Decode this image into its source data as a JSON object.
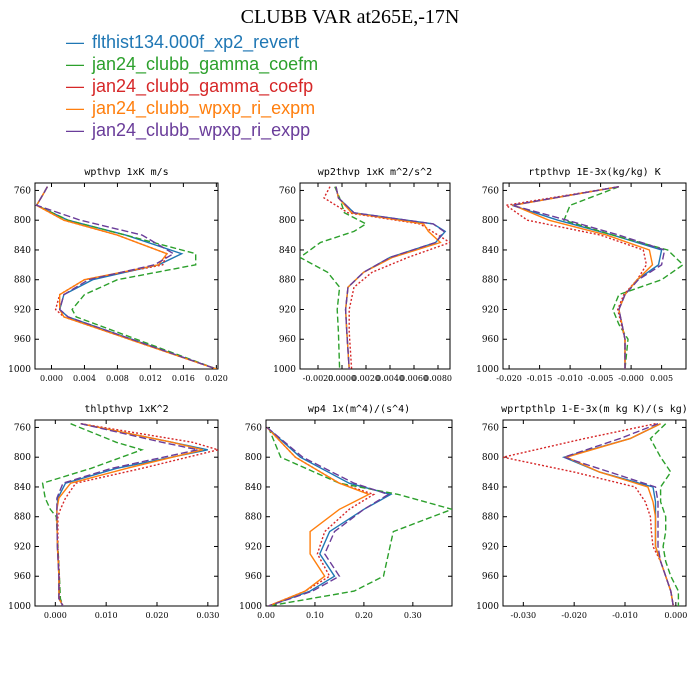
{
  "title": "CLUBB VAR at265E,-17N",
  "legend": [
    {
      "label": "flthist134.000f_xp2_revert",
      "color": "#1f77b4",
      "dash": ""
    },
    {
      "label": "jan24_clubb_gamma_coefm",
      "color": "#2ca02c",
      "dash": "6,3"
    },
    {
      "label": "jan24_clubb_gamma_coefp",
      "color": "#d62728",
      "dash": "2,2"
    },
    {
      "label": "jan24_clubb_wpxp_ri_expm",
      "color": "#ff7f0e",
      "dash": ""
    },
    {
      "label": "jan24_clubb_wpxp_ri_expp",
      "color": "#6a3d9a",
      "dash": "7,3"
    }
  ],
  "chart_data": [
    {
      "type": "line",
      "title": "wpthvp  1xK m/s",
      "ylim": [
        1000,
        750
      ],
      "yticks": [
        760,
        800,
        840,
        880,
        920,
        960,
        1000
      ],
      "xlim": [
        -0.002,
        0.0202
      ],
      "xticks": [
        0,
        0.004,
        0.008,
        0.012,
        0.016,
        0.02
      ],
      "xtick_labels": [
        "0.000",
        "0.004",
        "0.008",
        "0.012",
        "0.016",
        "0.020"
      ],
      "y": [
        755,
        765,
        780,
        800,
        820,
        845,
        860,
        880,
        900,
        920,
        930,
        1000
      ],
      "series": [
        {
          "values": [
            -0.0005,
            -0.001,
            -0.0018,
            0.002,
            0.009,
            0.0158,
            0.013,
            0.005,
            0.0015,
            0.001,
            0.002,
            0.02
          ]
        },
        {
          "values": [
            -0.0005,
            -0.001,
            -0.0018,
            0.002,
            0.009,
            0.0175,
            0.0175,
            0.008,
            0.004,
            0.0025,
            0.003,
            0.02
          ]
        },
        {
          "values": [
            -0.0005,
            -0.001,
            -0.0018,
            0.0015,
            0.008,
            0.014,
            0.0135,
            0.004,
            0.001,
            0.0005,
            0.0015,
            0.02
          ]
        },
        {
          "values": [
            -0.0005,
            -0.001,
            -0.0018,
            0.0015,
            0.008,
            0.014,
            0.013,
            0.004,
            0.001,
            0.001,
            0.0015,
            0.02
          ]
        },
        {
          "values": [
            -0.0005,
            -0.001,
            -0.0018,
            0.0035,
            0.011,
            0.0148,
            0.0125,
            0.0045,
            0.0015,
            0.001,
            0.002,
            0.02
          ]
        }
      ]
    },
    {
      "type": "line",
      "title": "wp2thvp  1xK m^2/s^2",
      "ylim": [
        1000,
        750
      ],
      "yticks": [
        760,
        800,
        840,
        880,
        920,
        960,
        1000
      ],
      "xlim": [
        -0.0035,
        0.009
      ],
      "xticks": [
        -0.002,
        0,
        0.002,
        0.004,
        0.006,
        0.008
      ],
      "xtick_labels": [
        "-0.0020",
        "0.0000",
        "0.0020",
        "0.0040",
        "0.0060",
        "0.0080"
      ],
      "y": [
        755,
        770,
        790,
        805,
        815,
        830,
        850,
        870,
        890,
        920,
        950,
        1000
      ],
      "series": [
        {
          "values": [
            -0.0005,
            -0.0003,
            0.001,
            0.0076,
            0.0086,
            0.0078,
            0.004,
            0.0018,
            0.0005,
            0.0003,
            0.0004,
            0.0006
          ]
        },
        {
          "values": [
            -0.0006,
            -0.0002,
            0.0002,
            0.002,
            0.001,
            -0.0018,
            -0.0035,
            -0.0012,
            -0.0002,
            -0.0004,
            -0.0003,
            -0.0002
          ]
        },
        {
          "values": [
            -0.001,
            -0.0015,
            0.0005,
            0.0065,
            0.0075,
            0.009,
            0.0055,
            0.0025,
            0.001,
            0.0006,
            0.0006,
            0.0008
          ]
        },
        {
          "values": [
            -0.0005,
            -0.0003,
            0.0008,
            0.0068,
            0.0072,
            0.0082,
            0.0042,
            0.0018,
            0.0005,
            0.0003,
            0.0004,
            0.0006
          ]
        },
        {
          "values": [
            -0.0005,
            -0.0003,
            0.001,
            0.0076,
            0.0085,
            0.0078,
            0.004,
            0.0018,
            0.0005,
            0.0003,
            0.0004,
            0.0006
          ]
        }
      ]
    },
    {
      "type": "line",
      "title": "rtpthvp  1E-3x(kg/kg) K",
      "ylim": [
        1000,
        750
      ],
      "yticks": [
        760,
        800,
        840,
        880,
        920,
        960,
        1000
      ],
      "xlim": [
        -0.021,
        0.009
      ],
      "xticks": [
        -0.02,
        -0.015,
        -0.01,
        -0.005,
        0,
        0.005
      ],
      "xtick_labels": [
        "-0.020",
        "-0.015",
        "-0.010",
        "-0.005",
        "-0.000",
        "0.005"
      ],
      "y": [
        755,
        780,
        800,
        820,
        840,
        860,
        880,
        900,
        920,
        940,
        960,
        1000
      ],
      "series": [
        {
          "values": [
            -0.002,
            -0.0195,
            -0.012,
            -0.003,
            0.005,
            0.0045,
            0.001,
            -0.001,
            -0.002,
            -0.0015,
            -0.001,
            -0.001
          ]
        },
        {
          "values": [
            -0.002,
            -0.01,
            -0.011,
            -0.003,
            0.006,
            0.0085,
            0.005,
            -0.002,
            -0.003,
            -0.002,
            -0.0005,
            -0.001
          ]
        },
        {
          "values": [
            -0.002,
            -0.0205,
            -0.017,
            -0.005,
            0.002,
            0.0025,
            0.001,
            -0.0012,
            -0.0022,
            -0.0016,
            -0.001,
            -0.001
          ]
        },
        {
          "values": [
            -0.002,
            -0.0193,
            -0.0135,
            -0.004,
            0.003,
            0.0035,
            0.001,
            -0.001,
            -0.002,
            -0.0015,
            -0.001,
            -0.001
          ]
        },
        {
          "values": [
            -0.002,
            -0.0195,
            -0.0105,
            -0.002,
            0.0055,
            0.005,
            0.0012,
            -0.001,
            -0.002,
            -0.0015,
            -0.001,
            -0.001
          ]
        }
      ]
    },
    {
      "type": "line",
      "title": "thlpthvp  1xK^2",
      "ylim": [
        1000,
        750
      ],
      "yticks": [
        760,
        800,
        840,
        880,
        920,
        960,
        1000
      ],
      "xlim": [
        -0.004,
        0.032
      ],
      "xticks": [
        0,
        0.01,
        0.02,
        0.03
      ],
      "xtick_labels": [
        "0.000",
        "0.010",
        "0.020",
        "0.030"
      ],
      "y": [
        755,
        780,
        790,
        815,
        835,
        855,
        870,
        880,
        920,
        960,
        990,
        1000
      ],
      "series": [
        {
          "values": [
            0.005,
            0.023,
            0.03,
            0.012,
            0.002,
            0.0005,
            0.0003,
            0.0003,
            0.0004,
            0.0007,
            0.0007,
            0.0015
          ]
        },
        {
          "values": [
            0.003,
            0.012,
            0.017,
            0.007,
            -0.0025,
            -0.002,
            -0.001,
            0.0002,
            0.0005,
            0.0008,
            0.001,
            0.0015
          ]
        },
        {
          "values": [
            0.005,
            0.027,
            0.032,
            0.017,
            0.004,
            0.002,
            0.001,
            0.0005,
            0.0005,
            0.0008,
            0.0008,
            0.0015
          ]
        },
        {
          "values": [
            0.005,
            0.023,
            0.029,
            0.014,
            0.003,
            0.0007,
            0.0003,
            0.0003,
            0.0004,
            0.0007,
            0.0007,
            0.0015
          ]
        },
        {
          "values": [
            0.005,
            0.021,
            0.028,
            0.011,
            0.0015,
            0.0003,
            0.0003,
            0.0003,
            0.0004,
            0.0007,
            0.0007,
            0.0015
          ]
        }
      ]
    },
    {
      "type": "line",
      "title": "wp4   1x(m^4)/(s^4)",
      "ylim": [
        1000,
        750
      ],
      "yticks": [
        760,
        800,
        840,
        880,
        920,
        960,
        1000
      ],
      "xlim": [
        0,
        0.38
      ],
      "xticks": [
        0,
        0.1,
        0.2,
        0.3
      ],
      "xtick_labels": [
        "0.00",
        "0.10",
        "0.20",
        "0.30"
      ],
      "y": [
        760,
        800,
        835,
        850,
        870,
        900,
        930,
        960,
        980,
        1000
      ],
      "series": [
        {
          "values": [
            0.002,
            0.07,
            0.17,
            0.255,
            0.2,
            0.13,
            0.11,
            0.14,
            0.09,
            0.005
          ]
        },
        {
          "values": [
            0.005,
            0.03,
            0.15,
            0.27,
            0.38,
            0.26,
            0.25,
            0.24,
            0.18,
            0.005
          ]
        },
        {
          "values": [
            0.002,
            0.06,
            0.15,
            0.22,
            0.17,
            0.12,
            0.105,
            0.13,
            0.08,
            0.005
          ]
        },
        {
          "values": [
            0.002,
            0.06,
            0.15,
            0.21,
            0.15,
            0.09,
            0.09,
            0.12,
            0.08,
            0.005
          ]
        },
        {
          "values": [
            0.002,
            0.075,
            0.18,
            0.25,
            0.2,
            0.14,
            0.12,
            0.15,
            0.095,
            0.005
          ]
        }
      ]
    },
    {
      "type": "line",
      "title": "wprtpthlp   1-E-3x(m kg K)/(s kg)",
      "ylim": [
        1000,
        750
      ],
      "yticks": [
        760,
        800,
        840,
        880,
        920,
        960,
        1000
      ],
      "xlim": [
        -0.034,
        0.002
      ],
      "xticks": [
        -0.03,
        -0.02,
        -0.01,
        0
      ],
      "xtick_labels": [
        "-0.030",
        "-0.020",
        "-0.010",
        "0.000"
      ],
      "y": [
        755,
        775,
        800,
        820,
        840,
        860,
        880,
        900,
        920,
        940,
        960,
        980,
        1000
      ],
      "series": [
        {
          "values": [
            -0.003,
            -0.009,
            -0.022,
            -0.015,
            -0.0045,
            -0.004,
            -0.004,
            -0.004,
            -0.004,
            -0.003,
            -0.002,
            -0.001,
            -0.0005
          ]
        },
        {
          "values": [
            -0.002,
            -0.005,
            -0.003,
            -0.001,
            -0.003,
            -0.003,
            -0.002,
            -0.002,
            -0.0025,
            -0.002,
            -0.001,
            0.0005,
            0.0005
          ]
        },
        {
          "values": [
            -0.004,
            -0.018,
            -0.034,
            -0.02,
            -0.008,
            -0.006,
            -0.005,
            -0.0048,
            -0.0045,
            -0.003,
            -0.002,
            -0.001,
            -0.0005
          ]
        },
        {
          "values": [
            -0.003,
            -0.009,
            -0.0215,
            -0.015,
            -0.0055,
            -0.0045,
            -0.004,
            -0.004,
            -0.004,
            -0.003,
            -0.002,
            -0.001,
            -0.0005
          ]
        },
        {
          "values": [
            -0.0035,
            -0.011,
            -0.022,
            -0.013,
            -0.004,
            -0.0035,
            -0.0035,
            -0.0035,
            -0.0035,
            -0.003,
            -0.002,
            -0.001,
            -0.0005
          ]
        }
      ]
    }
  ]
}
